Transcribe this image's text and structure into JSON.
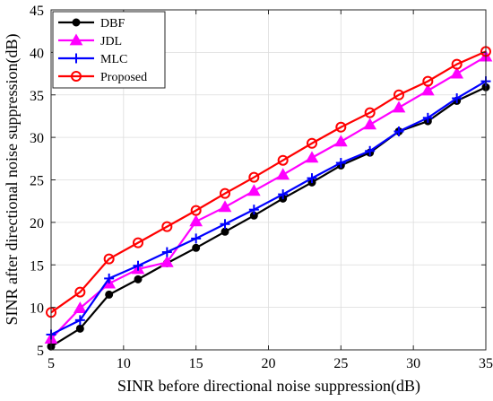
{
  "chart_data": {
    "type": "line",
    "title": "",
    "xlabel": "SINR before directional noise suppression(dB)",
    "ylabel": "SINR after  directional noise suppression(dB)",
    "xlim": [
      5,
      35
    ],
    "ylim": [
      5,
      45
    ],
    "xticks": [
      5,
      10,
      15,
      20,
      25,
      30,
      35
    ],
    "yticks": [
      5,
      10,
      15,
      20,
      25,
      30,
      35,
      40,
      45
    ],
    "grid": true,
    "legend_position": "top-left",
    "x": [
      5,
      7,
      9,
      11,
      13,
      15,
      17,
      19,
      21,
      23,
      25,
      27,
      29,
      31,
      33,
      35
    ],
    "series": [
      {
        "name": "DBF",
        "color": "#000000",
        "marker": "filled-circle",
        "values": [
          5.4,
          7.5,
          11.5,
          13.3,
          15.2,
          17.0,
          18.9,
          20.8,
          22.8,
          24.7,
          26.7,
          28.2,
          30.7,
          31.9,
          34.3,
          35.9
        ]
      },
      {
        "name": "JDL",
        "color": "#ff00ff",
        "marker": "triangle",
        "values": [
          6.3,
          9.9,
          12.8,
          14.5,
          15.3,
          20.1,
          21.8,
          23.7,
          25.6,
          27.6,
          29.5,
          31.5,
          33.5,
          35.5,
          37.5,
          39.5
        ]
      },
      {
        "name": "MLC",
        "color": "#0000ff",
        "marker": "plus",
        "values": [
          6.8,
          8.5,
          13.4,
          14.9,
          16.5,
          18.1,
          19.8,
          21.5,
          23.3,
          25.2,
          27.0,
          28.4,
          30.7,
          32.3,
          34.6,
          36.6
        ]
      },
      {
        "name": "Proposed",
        "color": "#ff0000",
        "marker": "open-circle",
        "values": [
          9.4,
          11.8,
          15.7,
          17.6,
          19.5,
          21.4,
          23.4,
          25.3,
          27.3,
          29.3,
          31.2,
          32.9,
          35.0,
          36.6,
          38.6,
          40.1
        ]
      }
    ]
  }
}
